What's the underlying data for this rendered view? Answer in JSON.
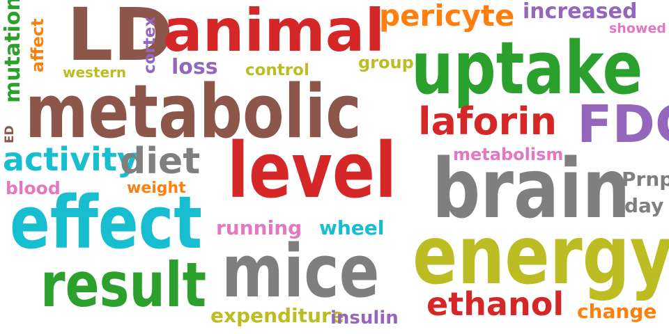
{
  "colors": {
    "brown": "#8c564b",
    "red": "#d62728",
    "orange": "#ff7f0e",
    "purple": "#9467bd",
    "pink": "#e377c2",
    "green": "#2ca02c",
    "olive": "#bcbd22",
    "cyan": "#17becf",
    "gray": "#7f7f7f"
  },
  "words": [
    {
      "id": "ld",
      "text": "LD",
      "color": "brown"
    },
    {
      "id": "animal",
      "text": "animal",
      "color": "red"
    },
    {
      "id": "pericyte",
      "text": "pericyte",
      "color": "orange"
    },
    {
      "id": "increased",
      "text": "increased",
      "color": "purple"
    },
    {
      "id": "showed",
      "text": "showed",
      "color": "pink"
    },
    {
      "id": "mutation",
      "text": "mutation",
      "color": "green"
    },
    {
      "id": "affect",
      "text": "affect",
      "color": "orange"
    },
    {
      "id": "cortex",
      "text": "cortex",
      "color": "purple"
    },
    {
      "id": "western",
      "text": "western",
      "color": "olive"
    },
    {
      "id": "loss",
      "text": "loss",
      "color": "purple"
    },
    {
      "id": "control",
      "text": "control",
      "color": "olive"
    },
    {
      "id": "group",
      "text": "group",
      "color": "olive"
    },
    {
      "id": "uptake",
      "text": "uptake",
      "color": "green"
    },
    {
      "id": "metabolic",
      "text": "metabolic",
      "color": "brown"
    },
    {
      "id": "laforin",
      "text": "laforin",
      "color": "red"
    },
    {
      "id": "fdg",
      "text": "FDG",
      "color": "purple"
    },
    {
      "id": "ed",
      "text": "ED",
      "color": "brown"
    },
    {
      "id": "activity",
      "text": "activity",
      "color": "cyan"
    },
    {
      "id": "diet",
      "text": "diet",
      "color": "gray"
    },
    {
      "id": "level",
      "text": "level",
      "color": "red"
    },
    {
      "id": "metabolism",
      "text": "metabolism",
      "color": "pink"
    },
    {
      "id": "blood",
      "text": "blood",
      "color": "pink"
    },
    {
      "id": "weight",
      "text": "weight",
      "color": "orange"
    },
    {
      "id": "brain",
      "text": "brain",
      "color": "gray"
    },
    {
      "id": "prnp",
      "text": "Prnp",
      "color": "gray"
    },
    {
      "id": "day",
      "text": "day",
      "color": "gray"
    },
    {
      "id": "effect",
      "text": "effect",
      "color": "cyan"
    },
    {
      "id": "running",
      "text": "running",
      "color": "pink"
    },
    {
      "id": "wheel",
      "text": "wheel",
      "color": "cyan"
    },
    {
      "id": "energy",
      "text": "energy",
      "color": "olive"
    },
    {
      "id": "mice",
      "text": "mice",
      "color": "gray"
    },
    {
      "id": "result",
      "text": "result",
      "color": "green"
    },
    {
      "id": "ethanol",
      "text": "ethanol",
      "color": "red"
    },
    {
      "id": "change",
      "text": "change",
      "color": "orange"
    },
    {
      "id": "expenditure",
      "text": "expenditure",
      "color": "olive"
    },
    {
      "id": "insulin",
      "text": "insulin",
      "color": "purple"
    }
  ]
}
